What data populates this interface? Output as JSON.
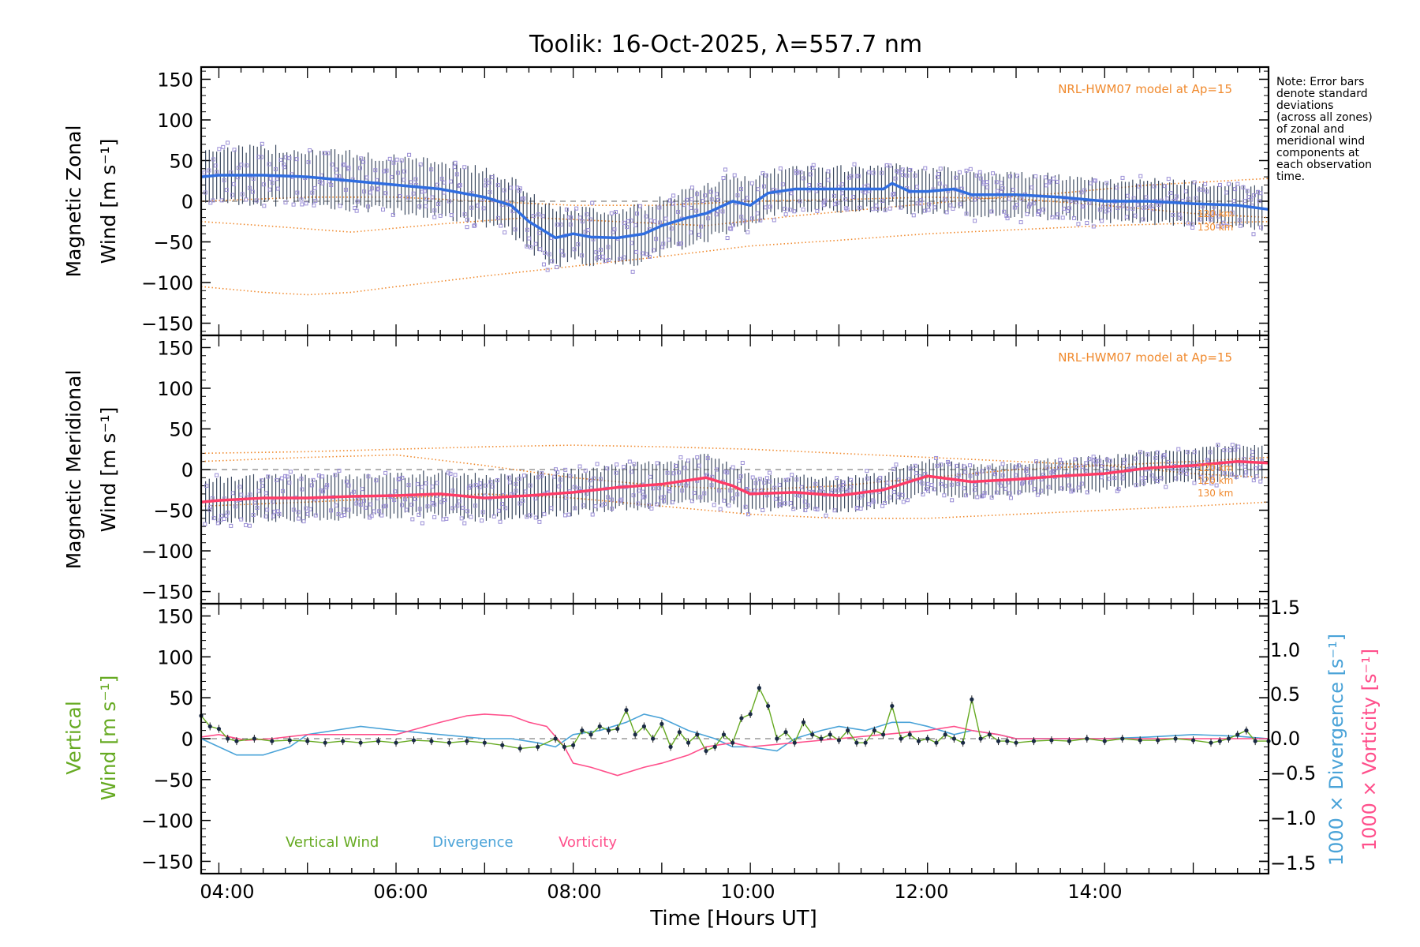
{
  "title": "Toolik: 16-Oct-2025, λ=557.7 nm",
  "note_lines": [
    "Note: Error bars",
    "denote standard",
    "deviations",
    "(across all zones)",
    "of zonal and",
    "meridional wind",
    "components at",
    "each observation",
    "time."
  ],
  "xlabel": "Time [Hours UT]",
  "colors": {
    "zonal": "#2f6de0",
    "meridional": "#ff3b66",
    "vertical": "#66aa22",
    "divergence": "#4aa3d8",
    "vorticity": "#ff4f8b",
    "model": "#f08a2e",
    "zone_marker": "#9b8fd6",
    "errorbar": "#1a2a44"
  },
  "chart_data": [
    {
      "type": "line",
      "panel": "zonal",
      "ylabel_lines": [
        "Magnetic Zonal",
        "Wind [m s⁻¹]"
      ],
      "xlim": [
        3.8,
        15.85
      ],
      "ylim": [
        -165,
        165
      ],
      "xticks": [
        4,
        6,
        8,
        10,
        12,
        14
      ],
      "xtick_labels": [
        "04:00",
        "06:00",
        "08:00",
        "10:00",
        "12:00",
        "14:00"
      ],
      "yticks": [
        -150,
        -100,
        -50,
        0,
        50,
        100,
        150
      ],
      "model_label": "NRL-HWM07 model at Ap=15",
      "model_alt_labels": [
        "120 km",
        "130 km"
      ],
      "series": [
        {
          "name": "Zonal wind (mean)",
          "x": [
            3.8,
            4.0,
            4.5,
            5.0,
            5.5,
            6.0,
            6.5,
            7.0,
            7.3,
            7.5,
            7.8,
            8.0,
            8.2,
            8.5,
            8.8,
            9.0,
            9.3,
            9.5,
            9.8,
            10.0,
            10.2,
            10.5,
            11.0,
            11.5,
            11.6,
            11.8,
            12.0,
            12.3,
            12.5,
            13.0,
            13.5,
            14.0,
            14.5,
            15.0,
            15.5,
            15.85
          ],
          "y": [
            30,
            32,
            32,
            30,
            25,
            20,
            15,
            5,
            -5,
            -25,
            -45,
            -40,
            -44,
            -45,
            -40,
            -30,
            -20,
            -15,
            0,
            -5,
            10,
            15,
            15,
            15,
            22,
            12,
            12,
            15,
            8,
            8,
            5,
            0,
            0,
            -3,
            -5,
            -10
          ]
        },
        {
          "name": "Model 1",
          "x": [
            3.8,
            4.5,
            5.0,
            5.5,
            6.0,
            7.0,
            8.0,
            9.0,
            10.0,
            11.0,
            12.0,
            13.0,
            14.0,
            15.0,
            15.85
          ],
          "y": [
            -105,
            -112,
            -115,
            -112,
            -105,
            -92,
            -80,
            -68,
            -55,
            -48,
            -40,
            -35,
            -30,
            -27,
            -25
          ]
        },
        {
          "name": "Model 2",
          "x": [
            3.8,
            4.5,
            5.5,
            6.5,
            7.5,
            8.5,
            9.5,
            10.5,
            11.5,
            12.5,
            13.5,
            14.5,
            15.85
          ],
          "y": [
            -25,
            -30,
            -38,
            -28,
            -20,
            -25,
            -30,
            -18,
            -8,
            2,
            10,
            20,
            28
          ]
        },
        {
          "name": "Model 3",
          "x": [
            3.8,
            5.0,
            6.0,
            7.0,
            8.0,
            9.0,
            10.0,
            11.0,
            12.0,
            13.0,
            14.0,
            15.0,
            15.85
          ],
          "y": [
            0,
            5,
            5,
            0,
            -5,
            -5,
            0,
            2,
            5,
            3,
            -5,
            -15,
            -20
          ]
        }
      ]
    },
    {
      "type": "line",
      "panel": "meridional",
      "ylabel_lines": [
        "Magnetic Meridional",
        "Wind [m s⁻¹]"
      ],
      "xlim": [
        3.8,
        15.85
      ],
      "ylim": [
        -165,
        165
      ],
      "xticks": [
        4,
        6,
        8,
        10,
        12,
        14
      ],
      "yticks": [
        -150,
        -100,
        -50,
        0,
        50,
        100,
        150
      ],
      "model_label": "NRL-HWM07 model at Ap=15",
      "model_alt_labels": [
        "120 km",
        "120 km",
        "130 km"
      ],
      "series": [
        {
          "name": "Meridional wind (mean)",
          "x": [
            3.8,
            4.0,
            4.5,
            5.0,
            5.5,
            6.0,
            6.5,
            7.0,
            7.5,
            8.0,
            8.5,
            9.0,
            9.5,
            9.8,
            10.0,
            10.5,
            11.0,
            11.5,
            12.0,
            12.5,
            13.0,
            13.5,
            14.0,
            14.5,
            15.0,
            15.5,
            15.85
          ],
          "y": [
            -40,
            -38,
            -35,
            -35,
            -33,
            -32,
            -30,
            -35,
            -32,
            -28,
            -22,
            -18,
            -10,
            -20,
            -30,
            -28,
            -32,
            -25,
            -8,
            -15,
            -12,
            -8,
            -5,
            2,
            5,
            10,
            8
          ]
        },
        {
          "name": "Model 1",
          "x": [
            3.8,
            5.0,
            6.0,
            7.0,
            8.0,
            9.0,
            10.0,
            11.0,
            12.0,
            13.0,
            14.0,
            15.0,
            15.85
          ],
          "y": [
            20,
            22,
            25,
            28,
            30,
            28,
            25,
            20,
            15,
            10,
            5,
            -5,
            -10
          ]
        },
        {
          "name": "Model 2",
          "x": [
            3.8,
            5.0,
            6.0,
            7.0,
            8.0,
            9.0,
            10.0,
            11.0,
            12.0,
            13.0,
            14.0,
            15.0,
            15.85
          ],
          "y": [
            10,
            15,
            18,
            5,
            -10,
            -20,
            -25,
            -20,
            -10,
            0,
            5,
            10,
            15
          ]
        },
        {
          "name": "Model 3",
          "x": [
            3.8,
            5.0,
            6.0,
            7.0,
            8.0,
            9.0,
            10.0,
            11.0,
            12.0,
            13.0,
            14.0,
            15.0,
            15.85
          ],
          "y": [
            -45,
            -40,
            -35,
            -30,
            -35,
            -45,
            -55,
            -60,
            -60,
            -55,
            -50,
            -45,
            -40
          ]
        }
      ]
    },
    {
      "type": "line",
      "panel": "vertical",
      "ylabel_lines": [
        "Vertical",
        "Wind [m s⁻¹]"
      ],
      "y2label_div": "1000 × Divergence [s⁻¹]",
      "y2label_vor": "1000 × Vorticity [s⁻¹]",
      "xlim": [
        3.8,
        15.85
      ],
      "ylim": [
        -165,
        165
      ],
      "y2lim": [
        -1.65,
        1.65
      ],
      "xticks": [
        4,
        6,
        8,
        10,
        12,
        14
      ],
      "yticks": [
        -150,
        -100,
        -50,
        0,
        50,
        100,
        150
      ],
      "y2ticks": [
        -1.5,
        -1.0,
        -0.5,
        0.0,
        0.5,
        1.0,
        1.5
      ],
      "y2tick_labels": [
        "−1.5",
        "−1.0",
        "−0.5",
        "0.0",
        "0.5",
        "1.0",
        "1.5"
      ],
      "legend": [
        "Vertical Wind",
        "Divergence",
        "Vorticity"
      ],
      "series": [
        {
          "name": "Vertical Wind",
          "x": [
            3.8,
            3.9,
            4.0,
            4.1,
            4.2,
            4.4,
            4.6,
            4.8,
            5.0,
            5.2,
            5.4,
            5.6,
            5.8,
            6.0,
            6.2,
            6.4,
            6.6,
            6.8,
            7.0,
            7.2,
            7.4,
            7.6,
            7.8,
            7.9,
            8.0,
            8.1,
            8.2,
            8.3,
            8.4,
            8.5,
            8.6,
            8.7,
            8.8,
            8.9,
            9.0,
            9.1,
            9.2,
            9.3,
            9.4,
            9.5,
            9.6,
            9.7,
            9.8,
            9.9,
            10.0,
            10.1,
            10.2,
            10.3,
            10.4,
            10.5,
            10.6,
            10.7,
            10.8,
            10.9,
            11.0,
            11.1,
            11.2,
            11.3,
            11.4,
            11.5,
            11.6,
            11.7,
            11.8,
            11.9,
            12.0,
            12.1,
            12.2,
            12.3,
            12.4,
            12.5,
            12.6,
            12.7,
            12.8,
            12.9,
            13.0,
            13.2,
            13.4,
            13.6,
            13.8,
            14.0,
            14.2,
            14.4,
            14.6,
            14.8,
            15.0,
            15.2,
            15.3,
            15.4,
            15.5,
            15.6,
            15.7,
            15.85
          ],
          "y": [
            28,
            15,
            12,
            0,
            -3,
            0,
            -3,
            -2,
            -3,
            -5,
            -3,
            -5,
            -3,
            -5,
            -2,
            -3,
            -5,
            -3,
            -5,
            -8,
            -12,
            -10,
            0,
            -10,
            -8,
            10,
            5,
            15,
            10,
            12,
            35,
            5,
            15,
            0,
            18,
            -10,
            8,
            -5,
            5,
            -15,
            -10,
            5,
            -5,
            25,
            30,
            62,
            40,
            0,
            8,
            -5,
            20,
            5,
            0,
            5,
            -2,
            10,
            -5,
            -5,
            10,
            5,
            40,
            0,
            5,
            -3,
            0,
            -5,
            5,
            0,
            -5,
            48,
            0,
            5,
            -3,
            -3,
            -5,
            -3,
            -2,
            -3,
            0,
            -3,
            0,
            -2,
            -2,
            0,
            -2,
            -5,
            -3,
            0,
            5,
            10,
            -3,
            -3
          ]
        },
        {
          "name": "Divergence",
          "x": [
            3.8,
            4.0,
            4.2,
            4.5,
            4.8,
            5.0,
            5.3,
            5.6,
            6.0,
            6.5,
            7.0,
            7.3,
            7.6,
            7.8,
            8.0,
            8.3,
            8.6,
            8.8,
            9.0,
            9.3,
            9.6,
            9.8,
            10.0,
            10.3,
            10.5,
            10.8,
            11.0,
            11.3,
            11.6,
            11.8,
            12.0,
            12.3,
            12.5,
            12.8,
            13.0,
            13.5,
            14.0,
            14.5,
            15.0,
            15.5,
            15.85
          ],
          "y": [
            0.0,
            -0.1,
            -0.2,
            -0.2,
            -0.1,
            0.05,
            0.1,
            0.15,
            0.1,
            0.05,
            0.0,
            0.0,
            -0.05,
            -0.1,
            0.05,
            0.1,
            0.2,
            0.3,
            0.25,
            0.1,
            0.0,
            -0.1,
            -0.1,
            -0.15,
            0.0,
            0.1,
            0.15,
            0.1,
            0.2,
            0.2,
            0.15,
            0.05,
            0.1,
            0.05,
            0.0,
            0.0,
            0.0,
            0.02,
            0.05,
            0.03,
            0.0
          ]
        },
        {
          "name": "Vorticity",
          "x": [
            3.8,
            4.0,
            4.3,
            4.6,
            5.0,
            5.5,
            6.0,
            6.5,
            6.8,
            7.0,
            7.3,
            7.5,
            7.7,
            7.9,
            8.0,
            8.2,
            8.5,
            8.8,
            9.0,
            9.3,
            9.5,
            9.8,
            10.0,
            10.5,
            11.0,
            11.5,
            12.0,
            12.3,
            12.5,
            12.8,
            13.0,
            13.5,
            14.0,
            14.5,
            15.0,
            15.5,
            15.85
          ],
          "y": [
            0.02,
            0.05,
            -0.02,
            0.0,
            0.05,
            0.05,
            0.05,
            0.2,
            0.28,
            0.3,
            0.28,
            0.2,
            0.15,
            -0.1,
            -0.3,
            -0.35,
            -0.45,
            -0.35,
            -0.3,
            -0.2,
            -0.1,
            -0.05,
            -0.1,
            -0.05,
            0.0,
            0.05,
            0.1,
            0.15,
            0.1,
            0.05,
            0.0,
            0.0,
            0.0,
            0.0,
            0.0,
            0.0,
            0.0
          ]
        }
      ]
    }
  ]
}
